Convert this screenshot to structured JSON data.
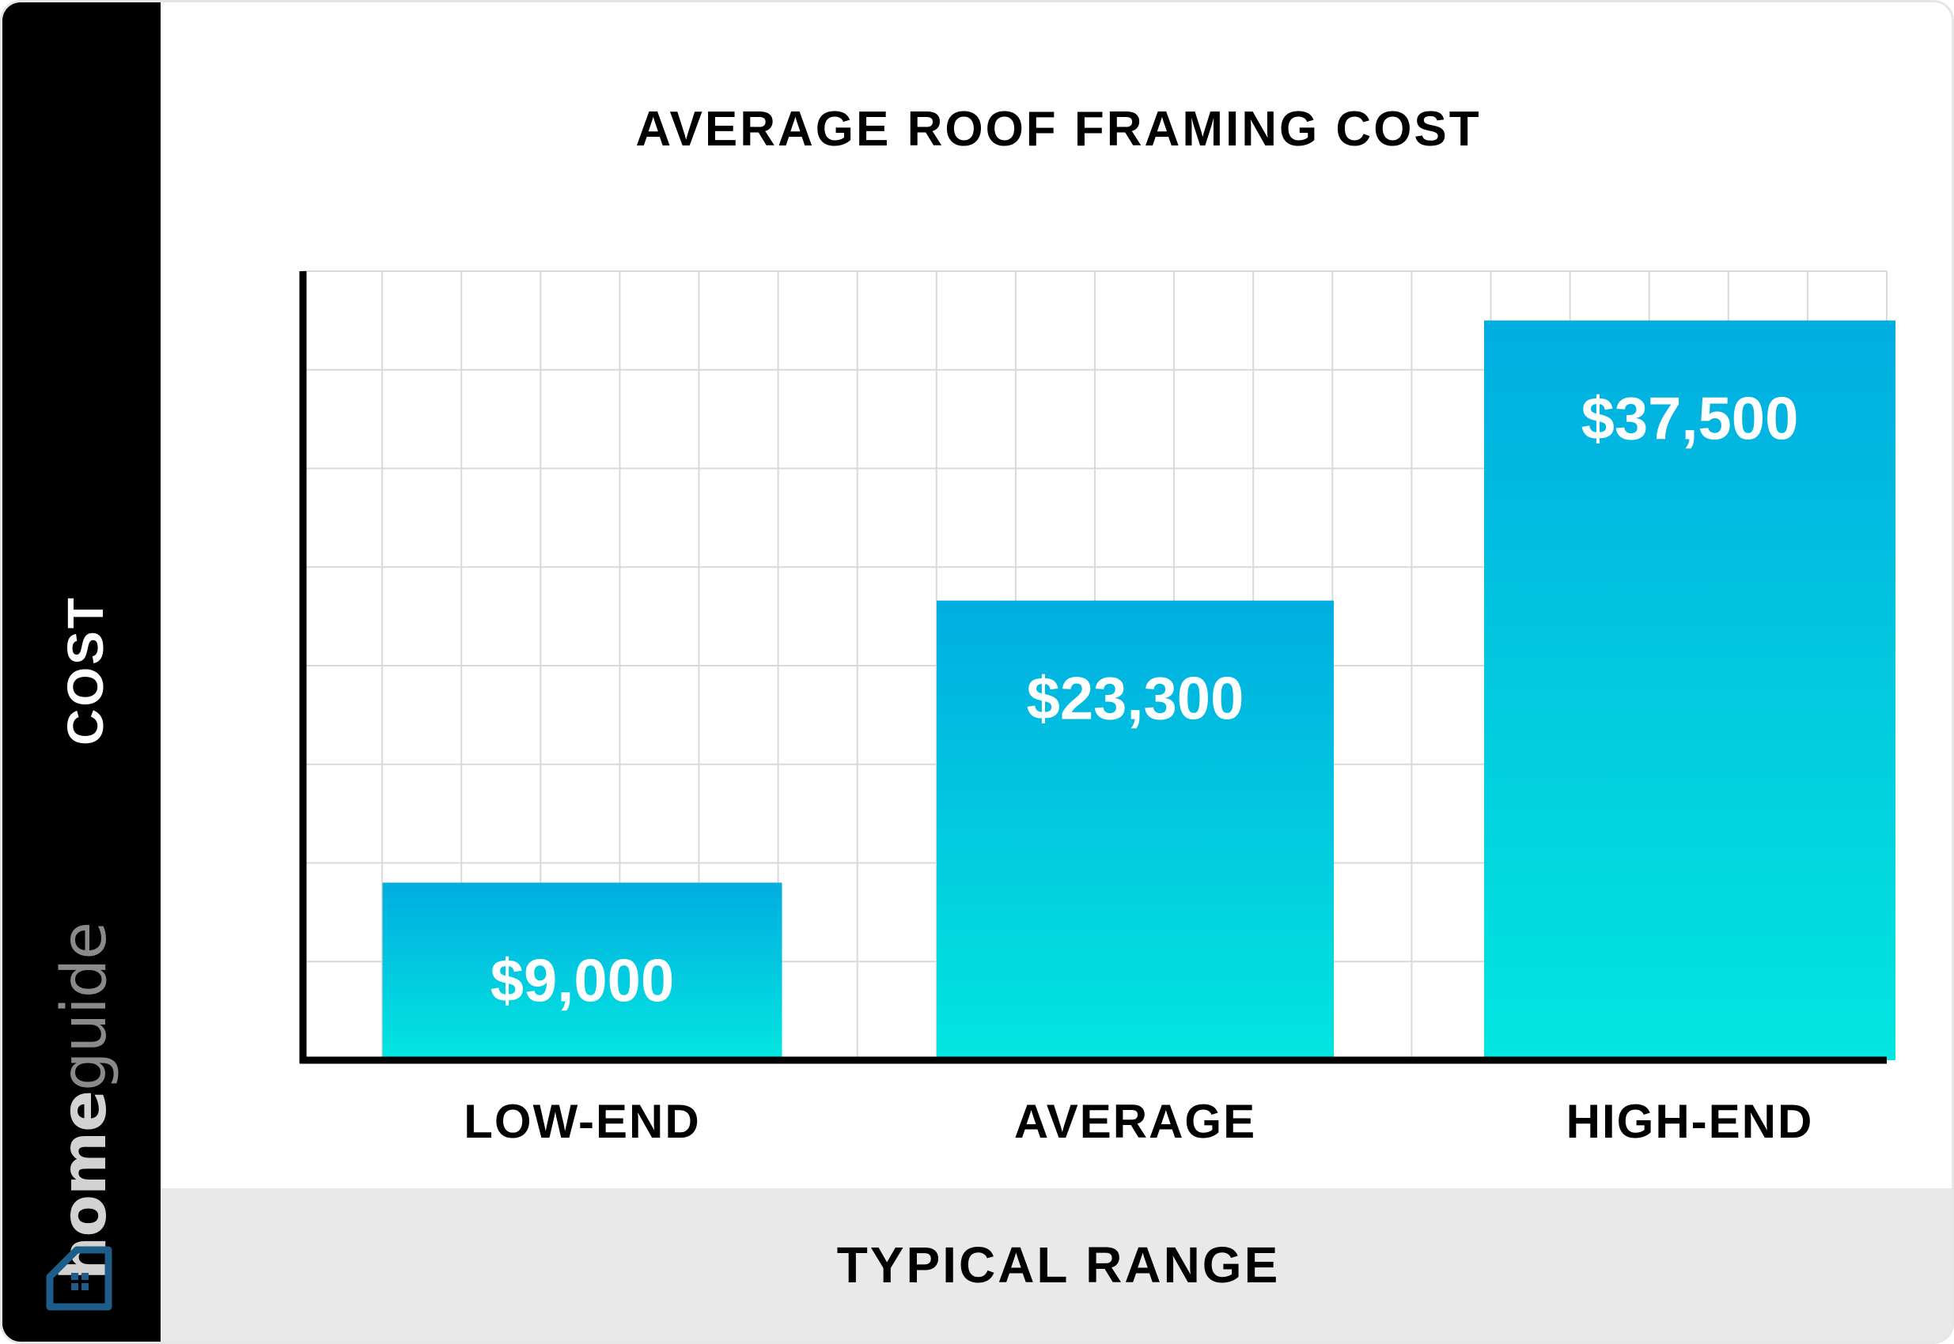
{
  "chart_data": {
    "type": "bar",
    "title": "AVERAGE ROOF FRAMING COST",
    "xlabel": "TYPICAL RANGE",
    "ylabel": "COST",
    "categories": [
      "LOW-END",
      "AVERAGE",
      "HIGH-END"
    ],
    "values": [
      9000,
      23300,
      37500
    ],
    "value_labels": [
      "$9,000",
      "$23,300",
      "$37,500"
    ],
    "ylim": [
      0,
      40000
    ],
    "grid": true,
    "colors": {
      "bar_top": "#01ADE0",
      "bar_bottom": "#02E6E0",
      "grid": "#d9d9d9",
      "axis": "#000000"
    }
  },
  "brand": {
    "part1": "home",
    "part2": "guide",
    "logo_color": "#1E5C8A"
  }
}
